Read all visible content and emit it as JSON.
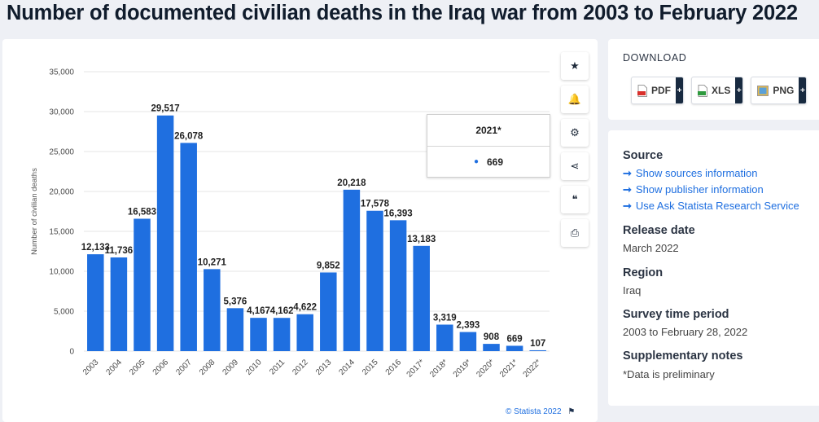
{
  "title": "Number of documented civilian deaths in the Iraq war from 2003 to February 2022",
  "colors": {
    "bar": "#1f6fe0",
    "grid": "#e6e6e6",
    "accent": "#1f6fe0"
  },
  "chart_data": {
    "type": "bar",
    "ylabel": "Number of civilian deaths",
    "ylim": [
      0,
      35000
    ],
    "yticks": [
      "0",
      "5,000",
      "10,000",
      "15,000",
      "20,000",
      "25,000",
      "30,000",
      "35,000"
    ],
    "grid": true,
    "categories": [
      "2003",
      "2004",
      "2005",
      "2006",
      "2007",
      "2008",
      "2009",
      "2010",
      "2011",
      "2012",
      "2013",
      "2014",
      "2015",
      "2016",
      "2017*",
      "2018*",
      "2019*",
      "2020*",
      "2021*",
      "2022*"
    ],
    "values": [
      12133,
      11736,
      16583,
      29517,
      26078,
      10271,
      5376,
      4167,
      4162,
      4622,
      9852,
      20218,
      17578,
      16393,
      13183,
      3319,
      2393,
      908,
      669,
      107
    ],
    "value_labels": [
      "12,133",
      "11,736",
      "16,583",
      "29,517",
      "26,078",
      "10,271",
      "5,376",
      "4,167",
      "4,162",
      "4,622",
      "9,852",
      "20,218",
      "17,578",
      "16,393",
      "13,183",
      "3,319",
      "2,393",
      "908",
      "669",
      "107"
    ]
  },
  "tooltip": {
    "header": "2021*",
    "value": "669"
  },
  "tools": [
    {
      "name": "favorite-icon",
      "glyph": "★"
    },
    {
      "name": "bell-icon",
      "glyph": "🔔"
    },
    {
      "name": "settings-icon",
      "glyph": "⚙"
    },
    {
      "name": "share-icon",
      "glyph": "⋖"
    },
    {
      "name": "quote-icon",
      "glyph": "❝"
    },
    {
      "name": "print-icon",
      "glyph": "⎙"
    }
  ],
  "copyright": "© Statista 2022",
  "download": {
    "title": "DOWNLOAD",
    "buttons": [
      {
        "label": "PDF",
        "icon": "pdf-file-icon",
        "plus": "+"
      },
      {
        "label": "XLS",
        "icon": "xls-file-icon",
        "plus": "+"
      },
      {
        "label": "PNG",
        "icon": "png-file-icon",
        "plus": "+"
      }
    ]
  },
  "info": {
    "source_heading": "Source",
    "source_links": [
      "Show sources information",
      "Show publisher information",
      "Use Ask Statista Research Service"
    ],
    "release_heading": "Release date",
    "release_value": "March 2022",
    "region_heading": "Region",
    "region_value": "Iraq",
    "survey_heading": "Survey time period",
    "survey_value": "2003 to February 28, 2022",
    "notes_heading": "Supplementary notes",
    "notes_value": "*Data is preliminary"
  }
}
